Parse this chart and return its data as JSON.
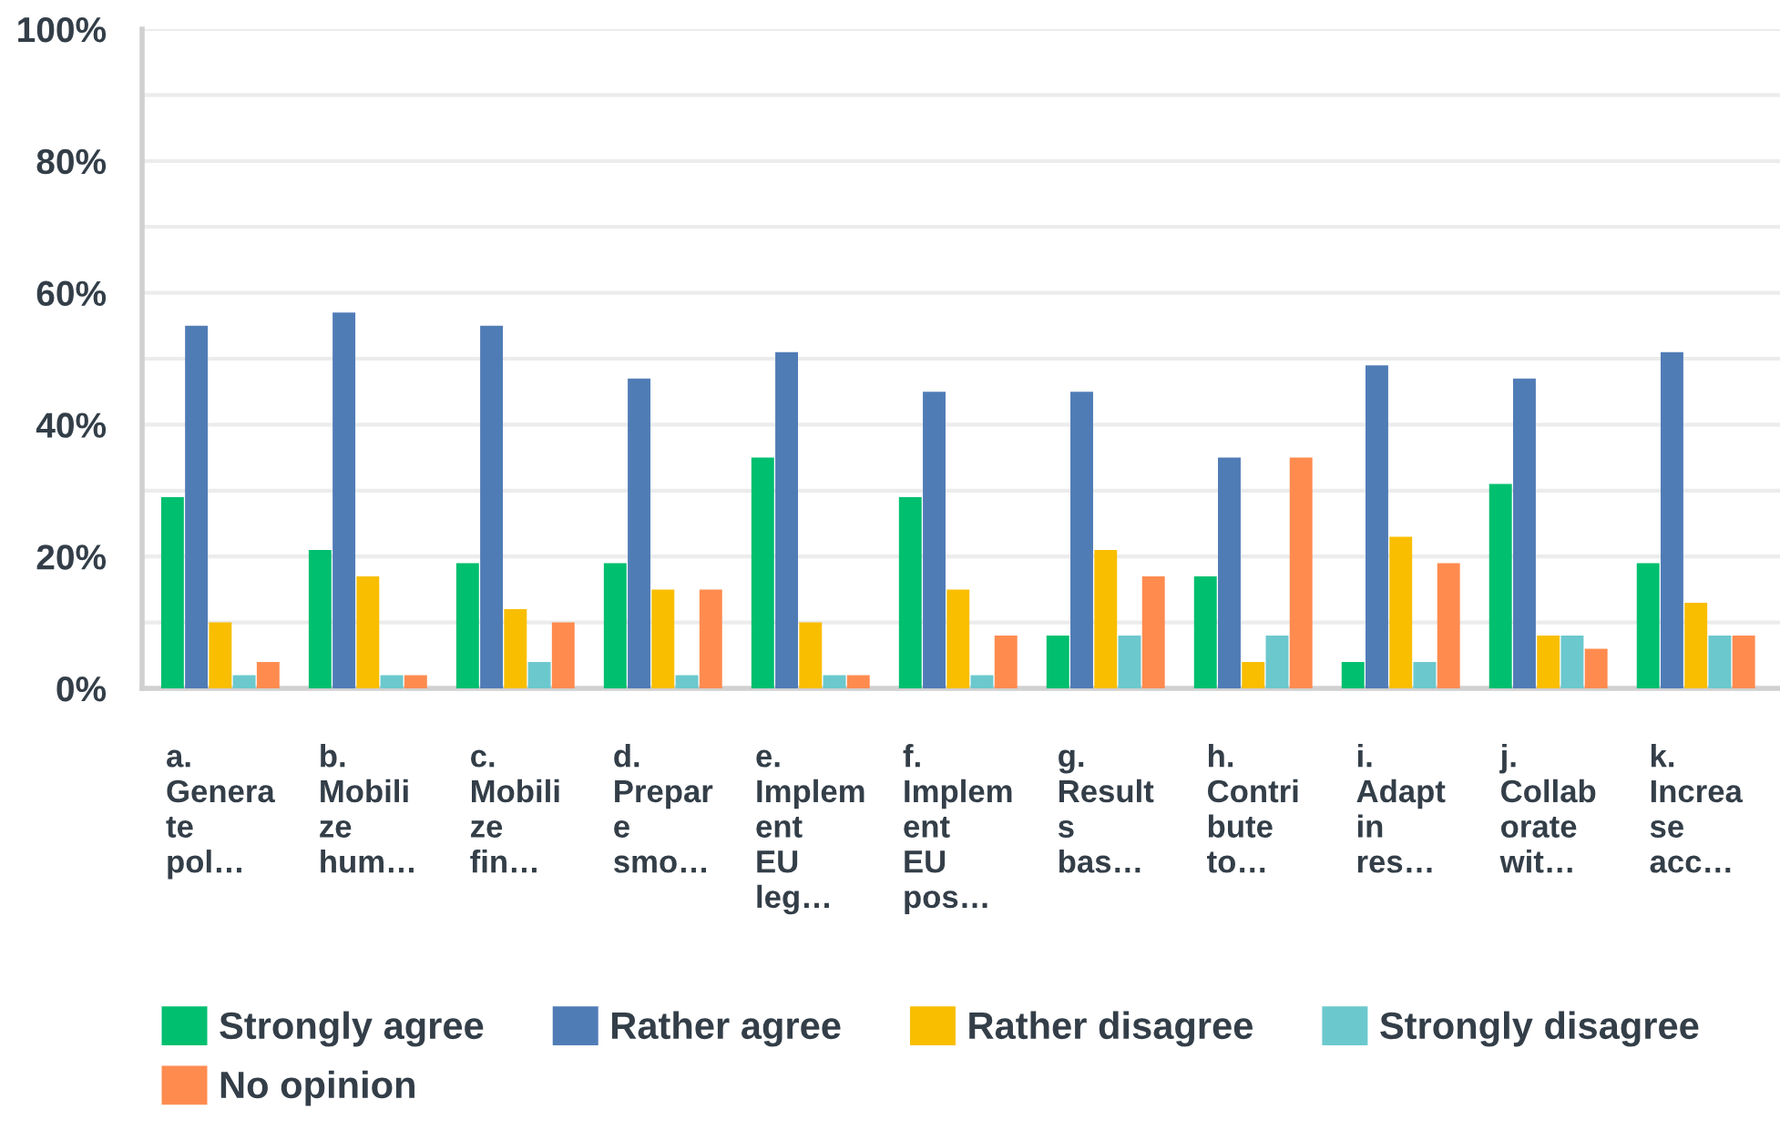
{
  "chart_data": {
    "type": "bar",
    "categories": [
      "a.\nGenera\nte\npol…",
      "b.\nMobili\nze\nhum…",
      "c.\nMobili\nze\nfin…",
      "d.\nPrepar\ne\nsmo…",
      "e.\nImplem\nent\nEU\nleg…",
      "f.\nImplem\nent\nEU\npos…",
      "g.\nResult\ns\nbas…",
      "h.\nContri\nbute\nto…",
      "i.\nAdapt\nin\nres…",
      "j.\nCollab\norate\nwit…",
      "k.\nIncrea\nse\nacc…"
    ],
    "series": [
      {
        "name": "Strongly agree",
        "color": "#00bf6f",
        "values": [
          29,
          21,
          19,
          19,
          35,
          29,
          8,
          17,
          4,
          31,
          19
        ]
      },
      {
        "name": "Rather agree",
        "color": "#507cb6",
        "values": [
          55,
          57,
          55,
          47,
          51,
          45,
          45,
          35,
          49,
          47,
          51
        ]
      },
      {
        "name": "Rather disagree",
        "color": "#f9be00",
        "values": [
          10,
          17,
          12,
          15,
          10,
          15,
          21,
          4,
          23,
          8,
          13
        ]
      },
      {
        "name": "Strongly disagree",
        "color": "#6bc8cd",
        "values": [
          2,
          2,
          4,
          2,
          2,
          2,
          8,
          8,
          4,
          8,
          8
        ]
      },
      {
        "name": "No opinion",
        "color": "#ff8b4f",
        "values": [
          4,
          2,
          10,
          15,
          2,
          8,
          17,
          35,
          19,
          6,
          8
        ]
      }
    ],
    "ylim": [
      0,
      100
    ],
    "yticks": [
      {
        "value": 0,
        "label": "0%"
      },
      {
        "value": 10,
        "label": null
      },
      {
        "value": 20,
        "label": "20%"
      },
      {
        "value": 30,
        "label": null
      },
      {
        "value": 40,
        "label": "40%"
      },
      {
        "value": 50,
        "label": null
      },
      {
        "value": 60,
        "label": "60%"
      },
      {
        "value": 70,
        "label": null
      },
      {
        "value": 80,
        "label": "80%"
      },
      {
        "value": 90,
        "label": null
      },
      {
        "value": 100,
        "label": "100%"
      }
    ],
    "grid": "y",
    "legend": "bottom"
  }
}
